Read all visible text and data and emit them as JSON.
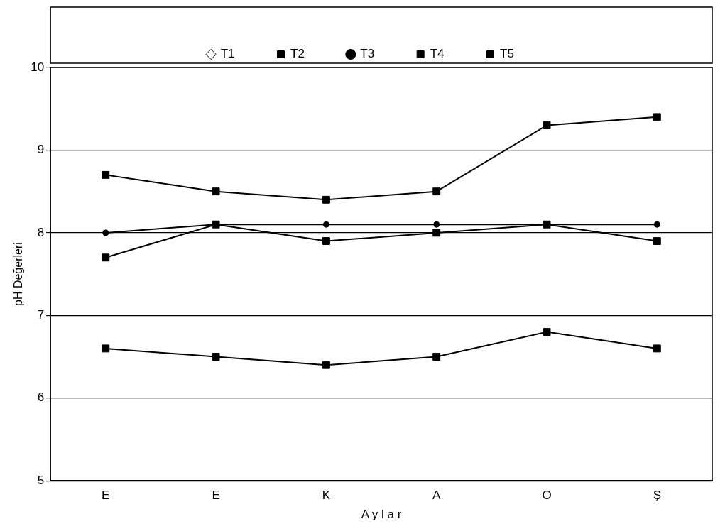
{
  "chart_data": {
    "type": "line",
    "xlabel": "A y l a r",
    "ylabel": "pH Değerleri",
    "categories": [
      "E",
      "E",
      "K",
      "A",
      "O",
      "Ş"
    ],
    "series": [
      {
        "name": "T1",
        "color": "#000000",
        "marker": "diamond",
        "values": [
          null,
          null,
          null,
          null,
          null,
          null
        ]
      },
      {
        "name": "T2",
        "color": "#000000",
        "marker": "square",
        "values": [
          6.6,
          6.5,
          6.4,
          6.5,
          6.8,
          6.6
        ]
      },
      {
        "name": "T3",
        "color": "#000000",
        "marker": "circle",
        "values": [
          8.0,
          8.1,
          8.1,
          8.1,
          8.1,
          8.1
        ]
      },
      {
        "name": "T4",
        "color": "#000000",
        "marker": "square",
        "values": [
          8.7,
          8.5,
          8.4,
          8.5,
          9.3,
          9.4
        ]
      },
      {
        "name": "T5",
        "color": "#000000",
        "marker": "square",
        "values": [
          7.7,
          8.1,
          7.9,
          8.0,
          8.1,
          7.9
        ]
      }
    ],
    "ylim": [
      5,
      10
    ],
    "yticks": [
      5,
      6,
      7,
      8,
      9,
      10
    ],
    "grid": "y",
    "legend": "top",
    "line_style": "solid"
  }
}
